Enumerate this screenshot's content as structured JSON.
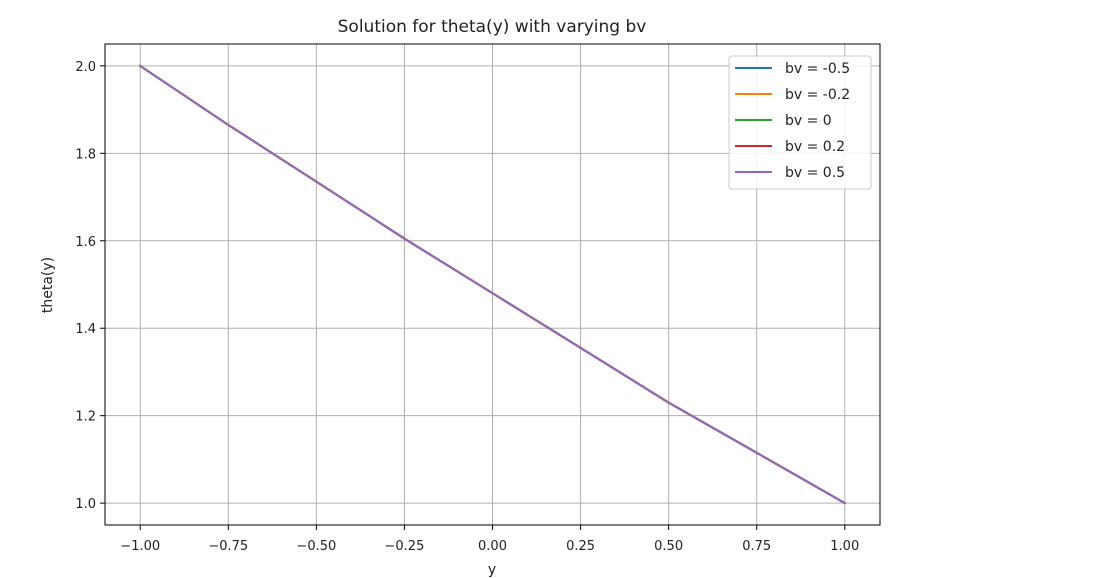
{
  "chart_data": {
    "type": "line",
    "title": "Solution for theta(y) with varying bv",
    "xlabel": "y",
    "ylabel": "theta(y)",
    "xlim": [
      -1.1,
      1.1
    ],
    "ylim": [
      0.95,
      2.05
    ],
    "xticks": [
      -1.0,
      -0.75,
      -0.5,
      -0.25,
      0.0,
      0.25,
      0.5,
      0.75,
      1.0
    ],
    "xtick_labels": [
      "−1.00",
      "−0.75",
      "−0.50",
      "−0.25",
      "0.00",
      "0.25",
      "0.50",
      "0.75",
      "1.00"
    ],
    "yticks": [
      1.0,
      1.2,
      1.4,
      1.6,
      1.8,
      2.0
    ],
    "ytick_labels": [
      "1.0",
      "1.2",
      "1.4",
      "1.6",
      "1.8",
      "2.0"
    ],
    "grid": true,
    "legend_position": "top-right",
    "x": [
      -1.0,
      -0.75,
      -0.5,
      -0.25,
      0.0,
      0.25,
      0.5,
      0.75,
      1.0
    ],
    "series": [
      {
        "name": "bv = -0.5",
        "color": "#1f77b4",
        "values": [
          2.0,
          1.865,
          1.735,
          1.605,
          1.48,
          1.355,
          1.23,
          1.115,
          1.0
        ]
      },
      {
        "name": "bv = -0.2",
        "color": "#ff7f0e",
        "values": [
          2.0,
          1.865,
          1.735,
          1.605,
          1.48,
          1.355,
          1.23,
          1.115,
          1.0
        ]
      },
      {
        "name": "bv = 0",
        "color": "#2ca02c",
        "values": [
          2.0,
          1.865,
          1.735,
          1.605,
          1.48,
          1.355,
          1.23,
          1.115,
          1.0
        ]
      },
      {
        "name": "bv = 0.2",
        "color": "#d62728",
        "values": [
          2.0,
          1.865,
          1.735,
          1.605,
          1.48,
          1.355,
          1.23,
          1.115,
          1.0
        ]
      },
      {
        "name": "bv = 0.5",
        "color": "#9467bd",
        "values": [
          2.0,
          1.865,
          1.735,
          1.605,
          1.48,
          1.355,
          1.23,
          1.115,
          1.0
        ]
      }
    ]
  }
}
